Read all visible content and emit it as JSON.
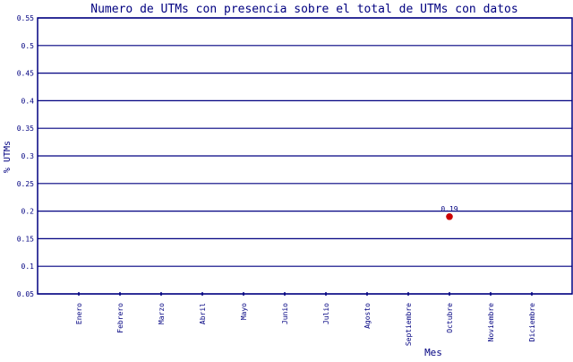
{
  "chart_data": {
    "type": "scatter",
    "title": "Numero de UTMs con presencia sobre el total de UTMs con datos",
    "xlabel": "Mes",
    "ylabel": "% UTMs",
    "categories": [
      "Enero",
      "Febrero",
      "Marzo",
      "Abril",
      "Mayo",
      "Junio",
      "Julio",
      "Agosto",
      "Septiembre",
      "Octubre",
      "Noviembre",
      "Diciembre"
    ],
    "ylim": [
      0.05,
      0.55
    ],
    "yticks": [
      "0.05",
      "0.1",
      "0.15",
      "0.2",
      "0.25",
      "0.3",
      "0.35",
      "0.4",
      "0.45",
      "0.5",
      "0.55"
    ],
    "grid": true,
    "points": [
      {
        "category": "Octubre",
        "value": 0.19,
        "label": "0.19"
      }
    ],
    "colors": {
      "axis": "#000080",
      "point": "#cc0000",
      "background": "#ffffff"
    }
  }
}
